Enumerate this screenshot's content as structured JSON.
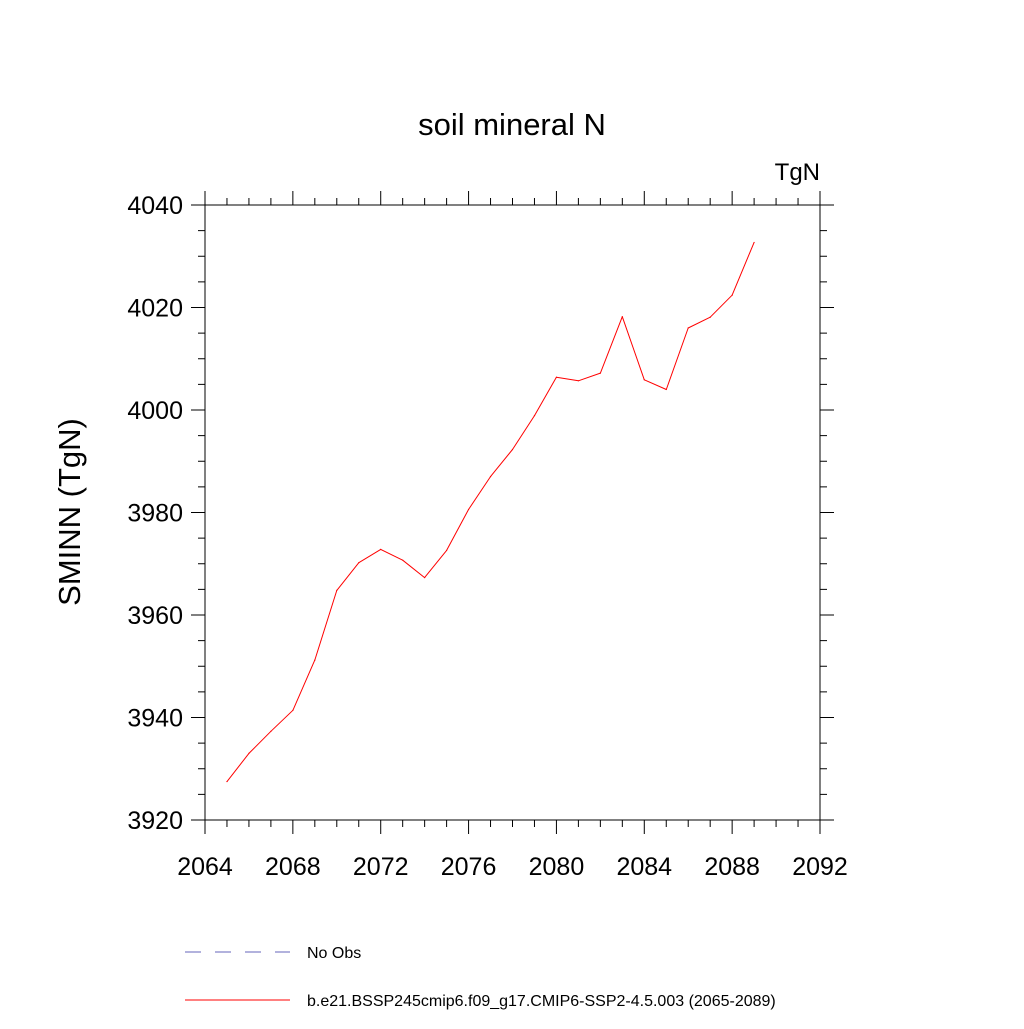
{
  "chart_data": {
    "type": "line",
    "title": "soil mineral N",
    "units_label": "TgN",
    "ylabel": "SMINN  (TgN)",
    "xlabel": "",
    "xlim": [
      2064,
      2092
    ],
    "ylim": [
      3920,
      4040
    ],
    "x_ticks": [
      2064,
      2068,
      2072,
      2076,
      2080,
      2084,
      2088,
      2092
    ],
    "y_ticks": [
      3920,
      3940,
      3960,
      3980,
      4000,
      4020,
      4040
    ],
    "grid": false,
    "legend_placement": "bottom",
    "series": [
      {
        "name": "b.e21.BSSP245cmip6.f09_g17.CMIP6-SSP2-4.5.003 (2065-2089)",
        "color": "#ff0000",
        "line_style": "solid",
        "x": [
          2065,
          2066,
          2067,
          2068,
          2069,
          2070,
          2071,
          2072,
          2073,
          2074,
          2075,
          2076,
          2077,
          2078,
          2079,
          2080,
          2081,
          2082,
          2083,
          2084,
          2085,
          2086,
          2087,
          2088,
          2089
        ],
        "y": [
          3927.5,
          3933,
          3937.3,
          3941.4,
          3951.2,
          3964.8,
          3970.2,
          3972.8,
          3970.7,
          3967.3,
          3972.6,
          3980.6,
          3987,
          3992.3,
          3998.9,
          4006.4,
          4005.7,
          4007.2,
          4018.2,
          4005.9,
          4004,
          4016,
          4018.1,
          4022.4,
          4032.7
        ]
      }
    ],
    "legend": [
      {
        "label": "No Obs",
        "color": "#6666bb",
        "line_style": "dashed"
      },
      {
        "label": "b.e21.BSSP245cmip6.f09_g17.CMIP6-SSP2-4.5.003 (2065-2089)",
        "color": "#ff0000",
        "line_style": "solid"
      }
    ]
  }
}
